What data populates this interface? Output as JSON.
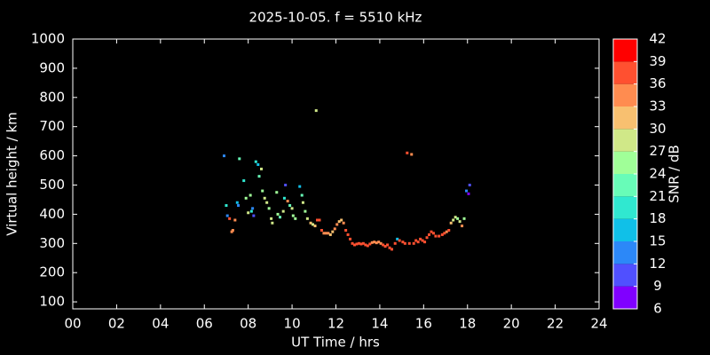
{
  "chart_data": {
    "type": "scatter",
    "title": "2025-10-05. f = 5510 kHz",
    "xlabel": "UT Time / hrs",
    "ylabel": "Virtual height / km",
    "xlim": [
      0,
      24
    ],
    "ylim": [
      76,
      1000
    ],
    "xticks": [
      {
        "value": 0,
        "label": "00"
      },
      {
        "value": 2,
        "label": "02"
      },
      {
        "value": 4,
        "label": "04"
      },
      {
        "value": 6,
        "label": "06"
      },
      {
        "value": 8,
        "label": "08"
      },
      10,
      12,
      14,
      16,
      18,
      20,
      22,
      24
    ],
    "yticks": [
      100,
      200,
      300,
      400,
      500,
      600,
      700,
      800,
      900,
      1000
    ],
    "series": [
      {
        "x": [
          6.9,
          7.0,
          7.05,
          7.15,
          7.3,
          7.25,
          7.4,
          7.5,
          7.55,
          7.6,
          7.8,
          7.9,
          8.0,
          8.1,
          8.15,
          8.2,
          8.25,
          8.35,
          8.45,
          8.5,
          8.6,
          8.65,
          8.75,
          8.85,
          8.95,
          9.05,
          9.1,
          9.3,
          9.35,
          9.45,
          9.6,
          9.65,
          9.7,
          9.8,
          9.9,
          10.0,
          10.05,
          10.15,
          10.35,
          10.45,
          10.5,
          10.6,
          10.7,
          10.85,
          10.95,
          11.05,
          11.1,
          11.15,
          11.25,
          11.35,
          11.45,
          11.55,
          11.65,
          11.75,
          11.85,
          11.95,
          12.05,
          12.15,
          12.25,
          12.35,
          12.45,
          12.55,
          12.65,
          12.75,
          12.85,
          12.95,
          13.05,
          13.15,
          13.25,
          13.35,
          13.45,
          13.55,
          13.65,
          13.75,
          13.85,
          13.95,
          14.05,
          14.15,
          14.25,
          14.35,
          14.45,
          14.55,
          14.7,
          14.8,
          14.9,
          15.05,
          15.15,
          15.25,
          15.35,
          15.45,
          15.55,
          15.65,
          15.75,
          15.85,
          15.95,
          16.05,
          16.15,
          16.25,
          16.35,
          16.45,
          16.55,
          16.7,
          16.85,
          16.95,
          17.05,
          17.15,
          17.25,
          17.35,
          17.45,
          17.55,
          17.65,
          17.75,
          17.85,
          17.95,
          18.05,
          18.1
        ],
        "values": [
          600,
          430,
          395,
          385,
          345,
          340,
          380,
          440,
          430,
          590,
          515,
          455,
          405,
          465,
          410,
          420,
          395,
          580,
          570,
          530,
          555,
          480,
          455,
          440,
          420,
          385,
          370,
          475,
          400,
          390,
          410,
          455,
          500,
          445,
          430,
          420,
          395,
          385,
          495,
          465,
          440,
          410,
          385,
          370,
          365,
          360,
          755,
          380,
          380,
          345,
          335,
          335,
          335,
          330,
          340,
          350,
          365,
          375,
          380,
          370,
          345,
          330,
          315,
          300,
          295,
          298,
          300,
          298,
          300,
          295,
          292,
          298,
          303,
          305,
          302,
          305,
          300,
          295,
          290,
          295,
          285,
          280,
          300,
          315,
          310,
          305,
          300,
          610,
          300,
          605,
          300,
          310,
          305,
          315,
          310,
          305,
          320,
          330,
          340,
          335,
          325,
          325,
          330,
          335,
          340,
          345,
          370,
          380,
          390,
          385,
          375,
          360,
          385,
          480,
          470,
          500
        ],
        "snr": [
          13,
          19,
          12,
          37,
          35,
          33,
          33,
          17,
          14,
          23,
          20,
          24,
          29,
          25,
          20,
          13,
          10,
          20,
          15,
          23,
          27,
          24,
          27,
          28,
          25,
          29,
          28,
          24,
          24,
          23,
          27,
          19,
          11,
          34,
          23,
          28,
          25,
          25,
          17,
          23,
          27,
          24,
          27,
          30,
          28,
          30,
          29,
          36,
          38,
          36,
          34,
          33,
          34,
          31,
          31,
          34,
          33,
          31,
          32,
          33,
          36,
          36,
          37,
          37,
          37,
          37,
          37,
          37,
          36,
          37,
          36,
          36,
          34,
          33,
          35,
          33,
          34,
          36,
          36,
          37,
          37,
          37,
          38,
          15,
          37,
          36,
          37,
          37,
          36,
          35,
          37,
          37,
          37,
          36,
          37,
          38,
          37,
          37,
          37,
          37,
          37,
          36,
          37,
          36,
          35,
          36,
          30,
          28,
          27,
          25,
          28,
          35,
          26,
          12,
          7,
          10
        ]
      }
    ],
    "colorbar": {
      "label": "SNR / dB",
      "lim": [
        6,
        42
      ],
      "ticks": [
        6,
        9,
        12,
        15,
        18,
        21,
        24,
        27,
        30,
        33,
        36,
        39,
        42
      ],
      "colors": [
        "#8000ff",
        "#5050ff",
        "#2c88f8",
        "#10c0e8",
        "#30e8d0",
        "#68fcb8",
        "#a0ff98",
        "#d0e888",
        "#f8c070",
        "#ff8c50",
        "#ff5030",
        "#ff0000"
      ]
    }
  }
}
